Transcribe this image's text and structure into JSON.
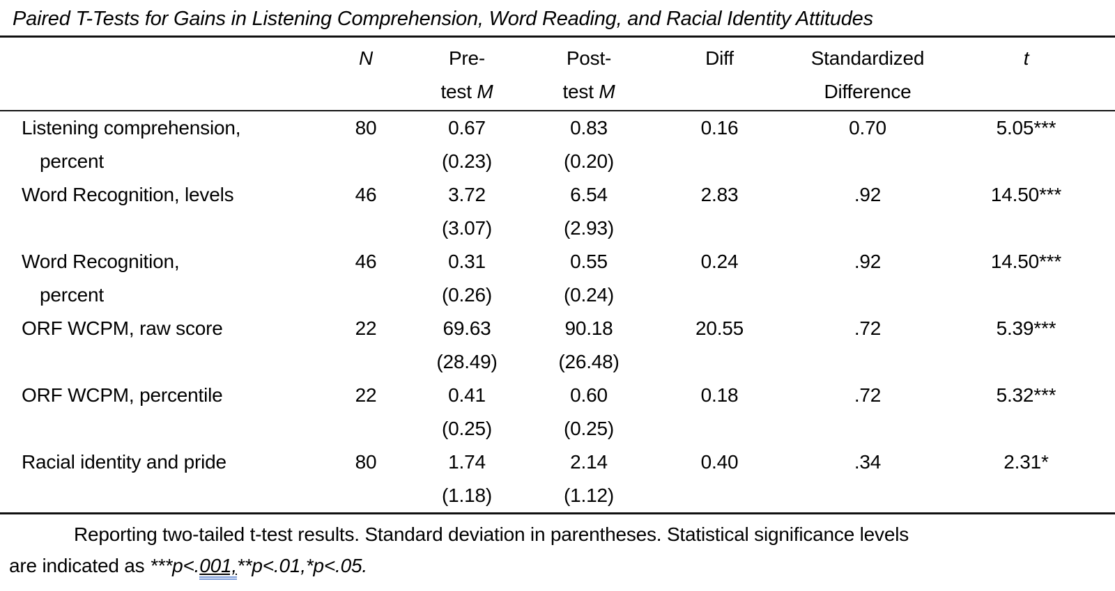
{
  "table": {
    "title": "Paired T-Tests for Gains in Listening Comprehension, Word Reading, and Racial Identity Attitudes",
    "headers": {
      "n": "N",
      "pre": {
        "line1": "Pre-",
        "line2_text": "test ",
        "line2_m": "M"
      },
      "post": {
        "line1": "Post-",
        "line2_text": "test ",
        "line2_m": "M"
      },
      "diff": "Diff",
      "std": {
        "line1": "Standardized",
        "line2": "Difference"
      },
      "t": "t"
    },
    "rows": [
      {
        "label1": "Listening comprehension,",
        "label2": "percent",
        "n": "80",
        "pre_m": "0.67",
        "pre_sd": "(0.23)",
        "post_m": "0.83",
        "post_sd": "(0.20)",
        "diff": "0.16",
        "std_diff": "0.70",
        "t": "5.05***"
      },
      {
        "label1": "Word Recognition, levels",
        "label2": "",
        "n": "46",
        "pre_m": "3.72",
        "pre_sd": "(3.07)",
        "post_m": "6.54",
        "post_sd": "(2.93)",
        "diff": "2.83",
        "std_diff": ".92",
        "t": "14.50***"
      },
      {
        "label1": "Word Recognition,",
        "label2": "percent",
        "n": "46",
        "pre_m": "0.31",
        "pre_sd": "(0.26)",
        "post_m": "0.55",
        "post_sd": "(0.24)",
        "diff": "0.24",
        "std_diff": ".92",
        "t": "14.50***"
      },
      {
        "label1": "ORF WCPM, raw score",
        "label2": "",
        "n": "22",
        "pre_m": "69.63",
        "pre_sd": "(28.49)",
        "post_m": "90.18",
        "post_sd": "(26.48)",
        "diff": "20.55",
        "std_diff": ".72",
        "t": "5.39***"
      },
      {
        "label1": "ORF WCPM, percentile",
        "label2": "",
        "n": "22",
        "pre_m": "0.41",
        "pre_sd": "(0.25)",
        "post_m": "0.60",
        "post_sd": "(0.25)",
        "diff": "0.18",
        "std_diff": ".72",
        "t": "5.32***"
      },
      {
        "label1": "Racial identity and pride",
        "label2": "",
        "n": "80",
        "pre_m": "1.74",
        "pre_sd": "(1.18)",
        "post_m": "2.14",
        "post_sd": "(1.12)",
        "diff": "0.40",
        "std_diff": ".34",
        "t": "2.31*"
      }
    ]
  },
  "footnote": {
    "line1": "Reporting two-tailed t-test results. Standard deviation in parentheses. Statistical significance levels",
    "line2_prefix": "are indicated as ",
    "sig_prefix": "***p<.",
    "sig_underlined": "001,",
    "sig_rest": "**p<.01,*p<.05."
  }
}
